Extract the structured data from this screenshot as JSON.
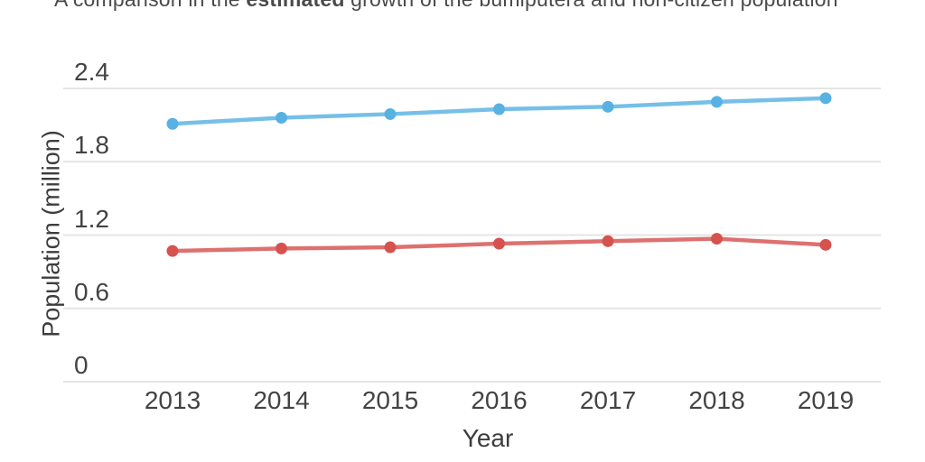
{
  "title": {
    "prefix": "A comparison in the ",
    "bold": "estimated",
    "suffix": " growth of the bumiputera and non-citizen population"
  },
  "y_axis": {
    "label": "Population (million)",
    "ticks": [
      {
        "value": 0,
        "label": "0"
      },
      {
        "value": 0.6,
        "label": "0.6"
      },
      {
        "value": 1.2,
        "label": "1.2"
      },
      {
        "value": 1.8,
        "label": "1.8"
      },
      {
        "value": 2.4,
        "label": "2.4"
      }
    ]
  },
  "x_axis": {
    "label": "Year",
    "ticks": [
      "2013",
      "2014",
      "2015",
      "2016",
      "2017",
      "2018",
      "2019"
    ]
  },
  "colors": {
    "bumiputera_series": "#58b1e3",
    "non_citizen_series": "#d6524f",
    "gridline": "#e4e4e4",
    "tick_text": "#434343",
    "title_text": "#4a4a4a"
  },
  "chart_data": {
    "type": "line",
    "title": "A comparison in the estimated growth of the bumiputera and non-citizen population",
    "x": [
      2013,
      2014,
      2015,
      2016,
      2017,
      2018,
      2019
    ],
    "series": [
      {
        "name": "bumiputera",
        "color": "#58b1e3",
        "values": [
          2.11,
          2.16,
          2.19,
          2.23,
          2.25,
          2.29,
          2.32
        ]
      },
      {
        "name": "non-citizen",
        "color": "#d6524f",
        "values": [
          1.07,
          1.09,
          1.1,
          1.13,
          1.15,
          1.17,
          1.12
        ]
      }
    ],
    "xlabel": "Year",
    "ylabel": "Population (million)",
    "ylim": [
      0,
      2.4
    ],
    "grid": true,
    "legend": false,
    "markers": true
  }
}
